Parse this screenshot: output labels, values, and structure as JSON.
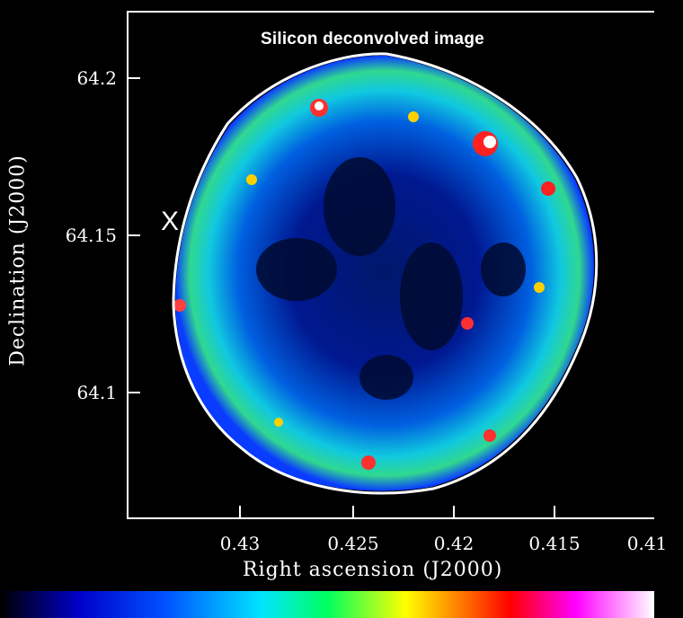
{
  "figure": {
    "title": "Silicon deconvolved image",
    "marker": "X"
  },
  "axes": {
    "xlabel": "Right ascension (J2000)",
    "ylabel": "Declination (J2000)",
    "xticks": [
      "0.43",
      "0.425",
      "0.42",
      "0.415",
      "0.41"
    ],
    "yticks": [
      "64.2",
      "64.15",
      "64.1"
    ]
  },
  "colors": {
    "background": "#000000",
    "frame": "#ffffff",
    "low": "#00008b",
    "mid": "#0090ff",
    "high": "#ff0000",
    "peak": "#ffffff"
  },
  "colorbar": {
    "stops": [
      "#000000",
      "#0000c8",
      "#0050ff",
      "#00e5ff",
      "#00ff60",
      "#ffff00",
      "#ff8000",
      "#ff0000",
      "#ff00ff",
      "#ffffff"
    ]
  }
}
